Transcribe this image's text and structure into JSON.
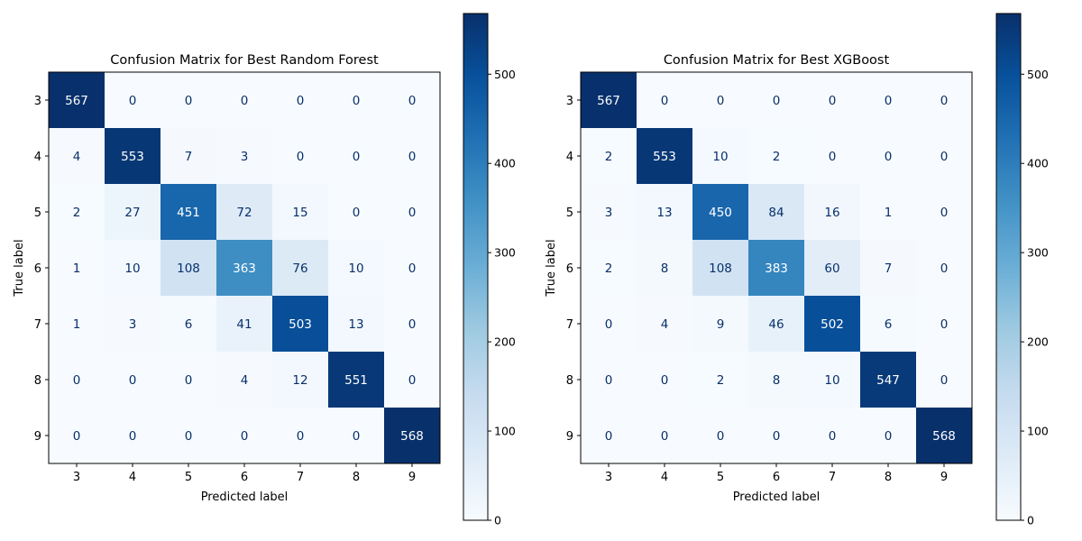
{
  "chart_data": [
    {
      "type": "heatmap",
      "title": "Confusion Matrix for Best Random Forest",
      "xlabel": "Predicted label",
      "ylabel": "True label",
      "x_categories": [
        "3",
        "4",
        "5",
        "6",
        "7",
        "8",
        "9"
      ],
      "y_categories": [
        "3",
        "4",
        "5",
        "6",
        "7",
        "8",
        "9"
      ],
      "values": [
        [
          567,
          0,
          0,
          0,
          0,
          0,
          0
        ],
        [
          4,
          553,
          7,
          3,
          0,
          0,
          0
        ],
        [
          2,
          27,
          451,
          72,
          15,
          0,
          0
        ],
        [
          1,
          10,
          108,
          363,
          76,
          10,
          0
        ],
        [
          1,
          3,
          6,
          41,
          503,
          13,
          0
        ],
        [
          0,
          0,
          0,
          4,
          12,
          551,
          0
        ],
        [
          0,
          0,
          0,
          0,
          0,
          0,
          568
        ]
      ],
      "colormap": "Blues",
      "colorbar": {
        "range": [
          0,
          568
        ],
        "ticks": [
          0,
          100,
          200,
          300,
          400,
          500
        ]
      },
      "grid": false
    },
    {
      "type": "heatmap",
      "title": "Confusion Matrix for Best XGBoost",
      "xlabel": "Predicted label",
      "ylabel": "True label",
      "x_categories": [
        "3",
        "4",
        "5",
        "6",
        "7",
        "8",
        "9"
      ],
      "y_categories": [
        "3",
        "4",
        "5",
        "6",
        "7",
        "8",
        "9"
      ],
      "values": [
        [
          567,
          0,
          0,
          0,
          0,
          0,
          0
        ],
        [
          2,
          553,
          10,
          2,
          0,
          0,
          0
        ],
        [
          3,
          13,
          450,
          84,
          16,
          1,
          0
        ],
        [
          2,
          8,
          108,
          383,
          60,
          7,
          0
        ],
        [
          0,
          4,
          9,
          46,
          502,
          6,
          0
        ],
        [
          0,
          0,
          2,
          8,
          10,
          547,
          0
        ],
        [
          0,
          0,
          0,
          0,
          0,
          0,
          568
        ]
      ],
      "colormap": "Blues",
      "colorbar": {
        "range": [
          0,
          568
        ],
        "ticks": [
          0,
          100,
          200,
          300,
          400,
          500
        ]
      },
      "grid": false
    }
  ]
}
